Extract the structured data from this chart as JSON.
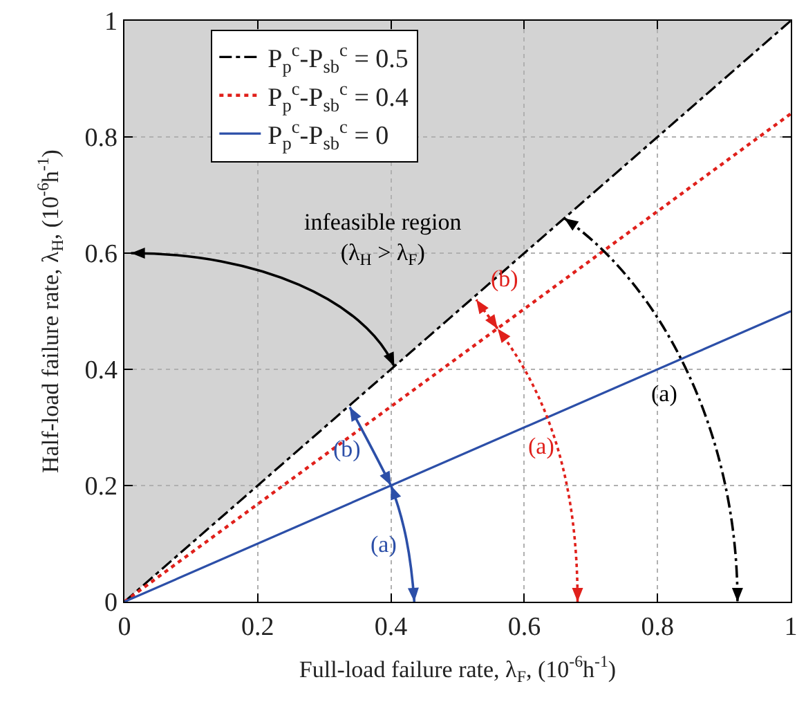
{
  "chart_data": {
    "type": "line",
    "xlabel": "Full-load failure rate, λ$_{F}$, (10$^{-6}$h$^{-1}$)",
    "ylabel": "Half-load failure rate, λ$_{H}$, (10$^{-6}$h$^{-1}$)",
    "x": [
      0,
      1
    ],
    "series": [
      {
        "name": "P$_{p}$$^{c}$-P$_{sb}$$^{c}$ = 0.5",
        "color": "#000000",
        "line_style": "dashdot",
        "values": [
          0,
          1
        ]
      },
      {
        "name": "P$_{p}$$^{c}$-P$_{sb}$$^{c}$ = 0.4",
        "color": "#e0201b",
        "line_style": "dotted",
        "values": [
          0,
          0.84
        ]
      },
      {
        "name": "P$_{p}$$^{c}$-P$_{sb}$$^{c}$ = 0",
        "color": "#2c4fa8",
        "line_style": "solid",
        "values": [
          0,
          0.5
        ]
      }
    ],
    "xlim": [
      0,
      1
    ],
    "ylim": [
      0,
      1
    ],
    "xticks": [
      0,
      0.2,
      0.4,
      0.6,
      0.8,
      1
    ],
    "yticks": [
      0,
      0.2,
      0.4,
      0.6,
      0.8,
      1
    ],
    "grid": true,
    "legend": "top left",
    "marker": "none",
    "annotations": [
      "infeasible region\n(λ$_{H}$ > λ$_{F}$)",
      "(a)",
      "(a)",
      "(b)",
      {
        "text": "(b)",
        "x": 0.4,
        "y": 0.2
      },
      {
        "text": "(a)",
        "x": 0.4,
        "y": 0.2
      }
    ]
  }
}
